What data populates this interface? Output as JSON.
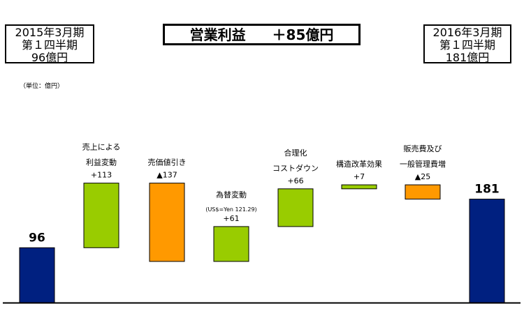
{
  "left_box": {
    "line1": "2015年3月期",
    "line2": "第１四半期",
    "line3": "96億円"
  },
  "right_box": {
    "line1": "2016年3月期",
    "line2": "第１四半期",
    "line3": "181億円"
  },
  "title": {
    "main": "営業利益",
    "change": "＋85億円"
  },
  "unit_note": "（単位：億円）",
  "colors": {
    "total": "#002080",
    "increase": "#99cc00",
    "decrease": "#ff9900"
  },
  "chart_data": {
    "type": "bar",
    "subtype": "waterfall",
    "ylim": [
      0,
      260
    ],
    "categories": [
      "96",
      "売上による利益変動",
      "売価値引き",
      "為替変動",
      "合理化コストダウン",
      "構造改革効果",
      "販売費及び一般管理費増",
      "181"
    ],
    "steps": [
      {
        "kind": "total",
        "value": 96,
        "end_label": "96"
      },
      {
        "kind": "increase",
        "value": 113,
        "label_lines": [
          "売上による",
          "利益変動"
        ],
        "value_label": "+113"
      },
      {
        "kind": "decrease",
        "value": -137,
        "label_lines": [
          "売価値引き"
        ],
        "value_label": "▲137"
      },
      {
        "kind": "increase",
        "value": 61,
        "label_lines": [
          "為替変動"
        ],
        "sub_label": "(US$=Yen 121.29)",
        "value_label": "+61"
      },
      {
        "kind": "increase",
        "value": 66,
        "label_lines": [
          "合理化",
          "コストダウン"
        ],
        "value_label": "+66"
      },
      {
        "kind": "increase",
        "value": 7,
        "label_lines": [
          "構造改革効果"
        ],
        "value_label": "+7"
      },
      {
        "kind": "decrease",
        "value": -25,
        "label_lines": [
          "販売費及び",
          "一般管理費増"
        ],
        "value_label": "▲25"
      },
      {
        "kind": "total",
        "value": 181,
        "end_label": "181"
      }
    ]
  }
}
